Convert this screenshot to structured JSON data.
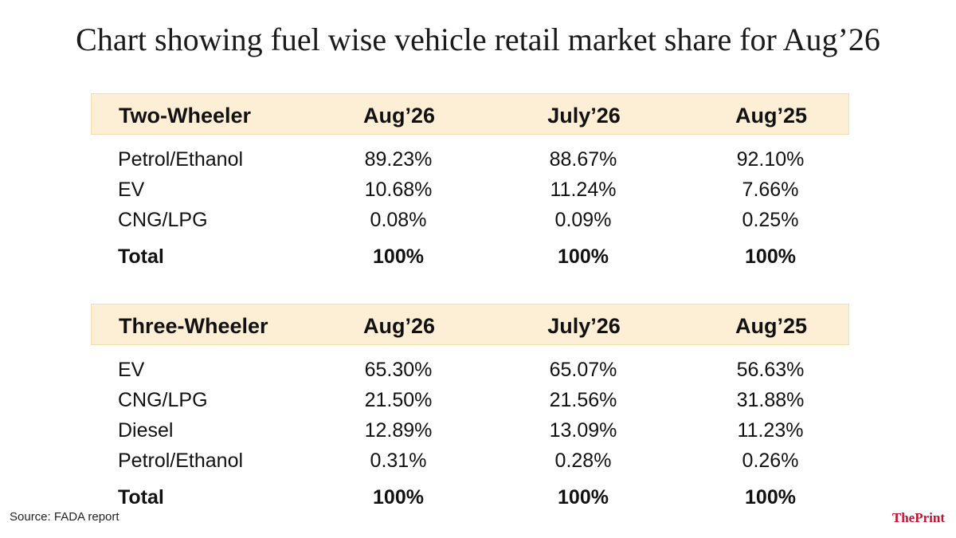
{
  "title": "Chart showing fuel wise vehicle retail market share for Aug’26",
  "chart_data": [
    {
      "type": "table",
      "columns": [
        "Two-Wheeler",
        "Aug’26",
        "July’26",
        "Aug’25"
      ],
      "rows": [
        [
          "Petrol/Ethanol",
          "89.23%",
          "88.67%",
          "92.10%"
        ],
        [
          "EV",
          "10.68%",
          "11.24%",
          "7.66%"
        ],
        [
          "CNG/LPG",
          "0.08%",
          "0.09%",
          "0.25%"
        ]
      ],
      "total": [
        "Total",
        "100%",
        "100%",
        "100%"
      ]
    },
    {
      "type": "table",
      "columns": [
        "Three-Wheeler",
        "Aug’26",
        "July’26",
        "Aug’25"
      ],
      "rows": [
        [
          "EV",
          "65.30%",
          "65.07%",
          "56.63%"
        ],
        [
          "CNG/LPG",
          "21.50%",
          "21.56%",
          "31.88%"
        ],
        [
          "Diesel",
          "12.89%",
          "13.09%",
          "11.23%"
        ],
        [
          "Petrol/Ethanol",
          "0.31%",
          "0.28%",
          "0.26%"
        ]
      ],
      "total": [
        "Total",
        "100%",
        "100%",
        "100%"
      ]
    }
  ],
  "source": "Source: FADA report",
  "logo": {
    "text": "ThePrint",
    "color": "#c8102e"
  },
  "colors": {
    "header_bg": "#fdefd6"
  }
}
